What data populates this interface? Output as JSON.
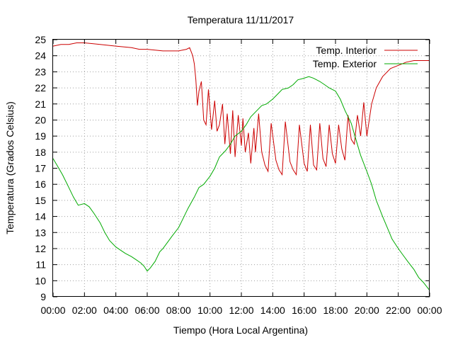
{
  "chart_data": {
    "type": "line",
    "title": "Temperatura 11/11/2017",
    "xlabel": "Tiempo (Hora Local Argentina)",
    "ylabel": "Temperatura (Grados Celsius)",
    "xlim": [
      0,
      24
    ],
    "ylim": [
      9,
      25
    ],
    "x_ticks": [
      "00:00",
      "02:00",
      "04:00",
      "06:00",
      "08:00",
      "10:00",
      "12:00",
      "14:00",
      "16:00",
      "18:00",
      "20:00",
      "22:00",
      "00:00"
    ],
    "y_ticks": [
      "9",
      "10",
      "11",
      "12",
      "13",
      "14",
      "15",
      "16",
      "17",
      "18",
      "19",
      "20",
      "21",
      "22",
      "23",
      "24",
      "25"
    ],
    "grid": true,
    "legend_position": "top-right",
    "series": [
      {
        "name": "Temp. Interior",
        "color": "#cc0000",
        "x": [
          0,
          0.5,
          1,
          1.5,
          2,
          3,
          4,
          5,
          5.5,
          6,
          7,
          8,
          8.5,
          8.7,
          8.9,
          9.0,
          9.1,
          9.2,
          9.3,
          9.45,
          9.6,
          9.75,
          9.9,
          10.1,
          10.3,
          10.45,
          10.6,
          10.8,
          10.95,
          11.1,
          11.3,
          11.45,
          11.6,
          11.8,
          12.0,
          12.1,
          12.25,
          12.45,
          12.6,
          12.8,
          12.9,
          13.1,
          13.3,
          13.5,
          13.7,
          13.9,
          14.2,
          14.4,
          14.6,
          14.8,
          15.1,
          15.3,
          15.5,
          15.7,
          16.0,
          16.2,
          16.4,
          16.6,
          16.8,
          17.0,
          17.2,
          17.4,
          17.6,
          17.8,
          18.0,
          18.2,
          18.4,
          18.6,
          18.8,
          19.0,
          19.2,
          19.4,
          19.6,
          19.8,
          20.0,
          20.3,
          20.6,
          21.0,
          21.5,
          22.0,
          22.5,
          23.0,
          23.5,
          24.0
        ],
        "y": [
          24.6,
          24.7,
          24.7,
          24.8,
          24.8,
          24.7,
          24.6,
          24.5,
          24.4,
          24.4,
          24.3,
          24.3,
          24.4,
          24.5,
          24.0,
          23.5,
          22.5,
          20.9,
          21.8,
          22.4,
          20.0,
          19.7,
          21.9,
          19.4,
          21.2,
          19.3,
          19.7,
          21.0,
          18.5,
          20.4,
          17.9,
          20.6,
          17.7,
          20.3,
          18.4,
          20.1,
          18.0,
          19.2,
          17.3,
          19.5,
          18.0,
          20.4,
          18.0,
          17.2,
          16.8,
          19.8,
          17.5,
          16.9,
          16.6,
          19.9,
          17.4,
          16.9,
          16.6,
          19.7,
          17.3,
          16.8,
          19.7,
          17.2,
          16.9,
          19.8,
          17.6,
          17.1,
          19.7,
          17.9,
          17.3,
          19.7,
          18.2,
          17.5,
          20.3,
          18.8,
          18.5,
          20.3,
          19.0,
          21.1,
          19.0,
          21.0,
          22.0,
          22.7,
          23.2,
          23.4,
          23.6,
          23.7,
          23.7,
          23.7
        ]
      },
      {
        "name": "Temp. Exterior",
        "color": "#00aa00",
        "x": [
          0,
          0.3,
          0.6,
          1.0,
          1.3,
          1.6,
          2.0,
          2.3,
          2.6,
          3.0,
          3.3,
          3.6,
          4.0,
          4.3,
          4.6,
          5.0,
          5.3,
          5.6,
          5.8,
          6.0,
          6.2,
          6.5,
          6.8,
          7.0,
          7.3,
          7.6,
          8.0,
          8.3,
          8.6,
          9.0,
          9.3,
          9.6,
          10.0,
          10.3,
          10.6,
          11.0,
          11.3,
          11.6,
          12.0,
          12.3,
          12.6,
          13.0,
          13.3,
          13.6,
          14.0,
          14.3,
          14.6,
          15.0,
          15.3,
          15.6,
          16.0,
          16.3,
          16.6,
          17.0,
          17.3,
          17.6,
          18.0,
          18.3,
          18.6,
          19.0,
          19.3,
          19.6,
          20.0,
          20.3,
          20.6,
          21.0,
          21.3,
          21.6,
          22.0,
          22.3,
          22.6,
          23.0,
          23.3,
          23.6,
          24.0
        ],
        "y": [
          17.6,
          17.1,
          16.6,
          15.8,
          15.2,
          14.7,
          14.8,
          14.6,
          14.2,
          13.6,
          13.0,
          12.5,
          12.1,
          11.9,
          11.7,
          11.5,
          11.3,
          11.1,
          10.9,
          10.6,
          10.8,
          11.2,
          11.8,
          12.0,
          12.4,
          12.8,
          13.3,
          13.9,
          14.5,
          15.2,
          15.8,
          16.0,
          16.5,
          17.0,
          17.7,
          18.1,
          18.5,
          19.0,
          19.3,
          19.7,
          20.2,
          20.6,
          20.9,
          21.0,
          21.3,
          21.6,
          21.9,
          22.0,
          22.2,
          22.5,
          22.6,
          22.7,
          22.6,
          22.4,
          22.2,
          22.0,
          21.8,
          21.3,
          20.6,
          19.8,
          18.8,
          17.8,
          16.8,
          16.0,
          15.0,
          14.0,
          13.3,
          12.6,
          12.0,
          11.6,
          11.2,
          10.7,
          10.2,
          9.9,
          9.4
        ]
      }
    ]
  }
}
